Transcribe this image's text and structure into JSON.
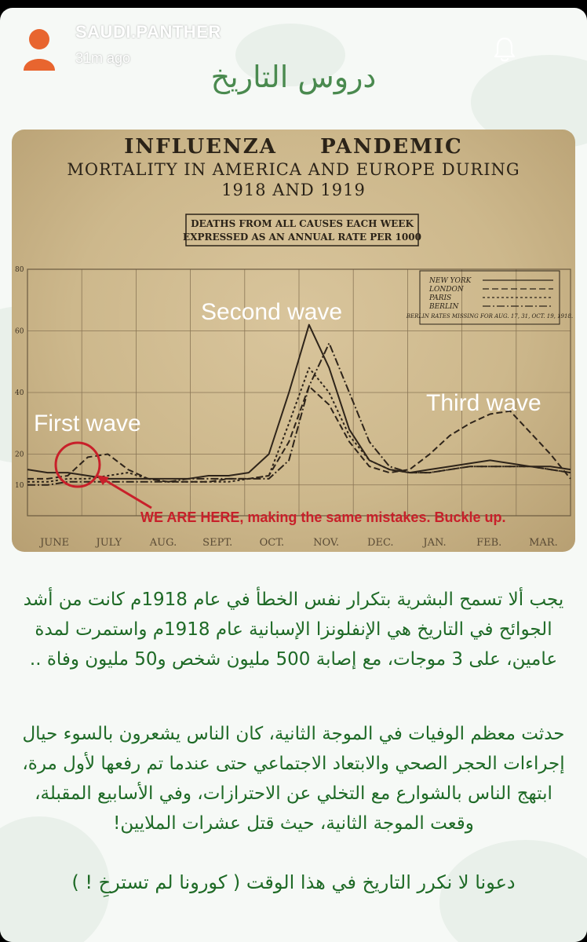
{
  "header": {
    "username": "SAUDI.PANTHER",
    "timestamp": "31m ago",
    "avatar_icon": "person-avatar-icon",
    "bell_icon": "bell-icon"
  },
  "post": {
    "title": "دروس التاريخ",
    "paragraph1": "يجب ألا تسمح البشرية بتكرار نفس الخطأ في عام 1918م كانت من أشد الجوائح في التاريخ هي الإنفلونزا الإسبانية عام 1918م واستمرت لمدة عامين، على 3 موجات، مع إصابة 500 مليون شخص و50 مليون وفاة ..",
    "paragraph2": "حدثت معظم الوفيات في الموجة الثانية، كان الناس يشعرون بالسوء حيال إجراءات الحجر الصحي والابتعاد الاجتماعي حتى عندما تم رفعها لأول مرة، ابتهج الناس بالشوارع مع التخلي عن الاحترازات، وفي الأسابيع المقبلة، وقعت الموجة الثانية، حيث قتل عشرات الملايين!",
    "paragraph3": "دعونا لا نكرر التاريخ في هذا الوقت ( كورونا لم تسترخِ ! )"
  },
  "colors": {
    "card_bg": "#f6f9f6",
    "arabic_green": "#1e6a26",
    "title_green": "#4a8a4f",
    "chart_paper": "#cdb88c",
    "annotation_red": "#c8202a"
  },
  "chart_data": {
    "type": "line",
    "title": "INFLUENZA     PANDEMIC",
    "subtitle": "MORTALITY IN AMERICA AND EUROPE DURING",
    "subtitle2": "1918 AND 1919",
    "box_label_line1": "DEATHS FROM ALL CAUSES EACH WEEK",
    "box_label_line2": "EXPRESSED AS AN ANNUAL RATE PER 1000",
    "ylim": [
      0,
      80
    ],
    "yticks": [
      "80",
      "60",
      "40",
      "20",
      "10"
    ],
    "months": [
      "JUNE",
      "JULY",
      "AUG.",
      "SEPT.",
      "OCT.",
      "NOV.",
      "DEC.",
      "JAN.",
      "FEB.",
      "MAR."
    ],
    "legend": [
      "NEW YORK",
      "LONDON",
      "PARIS",
      "BERLIN"
    ],
    "legend_note": "BERLIN RATES MISSING FOR AUG. 17, 31, OCT. 19, 1918.",
    "annotations": {
      "first_wave": "First wave",
      "second_wave": "Second wave",
      "third_wave": "Third wave",
      "note_red": "WE ARE HERE,",
      "note_rest": " making the same mistakes. Buckle up."
    },
    "series": [
      {
        "name": "NEW YORK",
        "x": [
          0,
          2,
          4,
          6,
          8,
          10,
          12,
          14,
          16,
          18,
          20,
          22,
          24,
          26,
          28,
          30,
          32,
          34,
          36,
          38,
          40,
          42,
          44,
          46,
          48,
          50,
          52,
          54
        ],
        "values": [
          15,
          14,
          14,
          13,
          12,
          12,
          12,
          12,
          12,
          13,
          13,
          14,
          20,
          40,
          62,
          48,
          28,
          18,
          15,
          14,
          15,
          16,
          17,
          18,
          17,
          16,
          16,
          15
        ]
      },
      {
        "name": "LONDON",
        "x": [
          0,
          2,
          4,
          6,
          8,
          10,
          12,
          14,
          16,
          18,
          20,
          22,
          24,
          26,
          28,
          30,
          32,
          34,
          36,
          38,
          40,
          42,
          44,
          46,
          48,
          50,
          52,
          54
        ],
        "values": [
          12,
          12,
          13,
          19,
          20,
          15,
          12,
          11,
          11,
          11,
          12,
          12,
          13,
          24,
          42,
          36,
          24,
          16,
          14,
          15,
          20,
          26,
          30,
          33,
          34,
          27,
          20,
          12
        ]
      },
      {
        "name": "PARIS",
        "x": [
          0,
          2,
          4,
          6,
          8,
          10,
          12,
          14,
          16,
          18,
          20,
          22,
          24,
          26,
          28,
          30,
          32,
          34,
          36,
          38,
          40,
          42,
          44,
          46,
          48,
          50,
          52,
          54
        ],
        "values": [
          11,
          11,
          12,
          12,
          13,
          14,
          12,
          11,
          11,
          11,
          11,
          12,
          13,
          30,
          48,
          40,
          26,
          18,
          15,
          14,
          14,
          15,
          16,
          16,
          16,
          16,
          15,
          14
        ]
      },
      {
        "name": "BERLIN",
        "x": [
          0,
          2,
          4,
          6,
          8,
          10,
          12,
          14,
          16,
          18,
          20,
          22,
          24,
          26,
          28,
          30,
          32,
          34,
          36,
          38,
          40,
          42,
          44,
          46,
          48,
          50,
          52,
          54
        ],
        "values": [
          10,
          10,
          11,
          11,
          11,
          11,
          11,
          11,
          12,
          12,
          12,
          12,
          12,
          18,
          42,
          56,
          40,
          24,
          16,
          14,
          14,
          15,
          16,
          16,
          16,
          16,
          15,
          14
        ]
      }
    ]
  }
}
